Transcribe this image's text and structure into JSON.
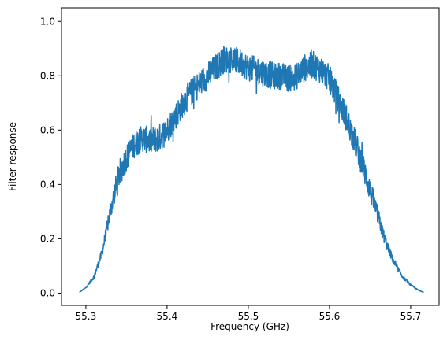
{
  "chart_data": {
    "type": "line",
    "title": "",
    "xlabel": "Frequency (GHz)",
    "ylabel": "Filter response",
    "xlim": [
      55.27,
      55.735
    ],
    "ylim": [
      -0.045,
      1.05
    ],
    "xticks": [
      55.3,
      55.4,
      55.5,
      55.6,
      55.7
    ],
    "xtick_labels": [
      "55.3",
      "55.4",
      "55.5",
      "55.6",
      "55.7"
    ],
    "yticks": [
      0.0,
      0.2,
      0.4,
      0.6,
      0.8,
      1.0
    ],
    "ytick_labels": [
      "0.0",
      "0.2",
      "0.4",
      "0.6",
      "0.8",
      "1.0"
    ],
    "grid": false,
    "line_color": "#1f77b4",
    "series": [
      {
        "x": [
          55.292,
          55.3,
          55.31,
          55.32,
          55.33,
          55.34,
          55.35,
          55.36,
          55.37,
          55.38,
          55.39,
          55.4,
          55.41,
          55.42,
          55.43,
          55.44,
          55.45,
          55.46,
          55.47,
          55.48,
          55.49,
          55.5,
          55.51,
          55.52,
          55.53,
          55.54,
          55.55,
          55.56,
          55.57,
          55.58,
          55.59,
          55.6,
          55.61,
          55.62,
          55.63,
          55.64,
          55.65,
          55.66,
          55.67,
          55.68,
          55.69,
          55.7,
          55.71,
          55.716
        ],
        "y": [
          0.003,
          0.02,
          0.06,
          0.15,
          0.3,
          0.43,
          0.5,
          0.55,
          0.57,
          0.56,
          0.57,
          0.6,
          0.65,
          0.7,
          0.74,
          0.77,
          0.8,
          0.83,
          0.86,
          0.86,
          0.85,
          0.83,
          0.82,
          0.81,
          0.8,
          0.8,
          0.79,
          0.8,
          0.83,
          0.84,
          0.82,
          0.79,
          0.72,
          0.65,
          0.57,
          0.48,
          0.38,
          0.28,
          0.18,
          0.11,
          0.06,
          0.03,
          0.01,
          0.003
        ]
      }
    ]
  }
}
